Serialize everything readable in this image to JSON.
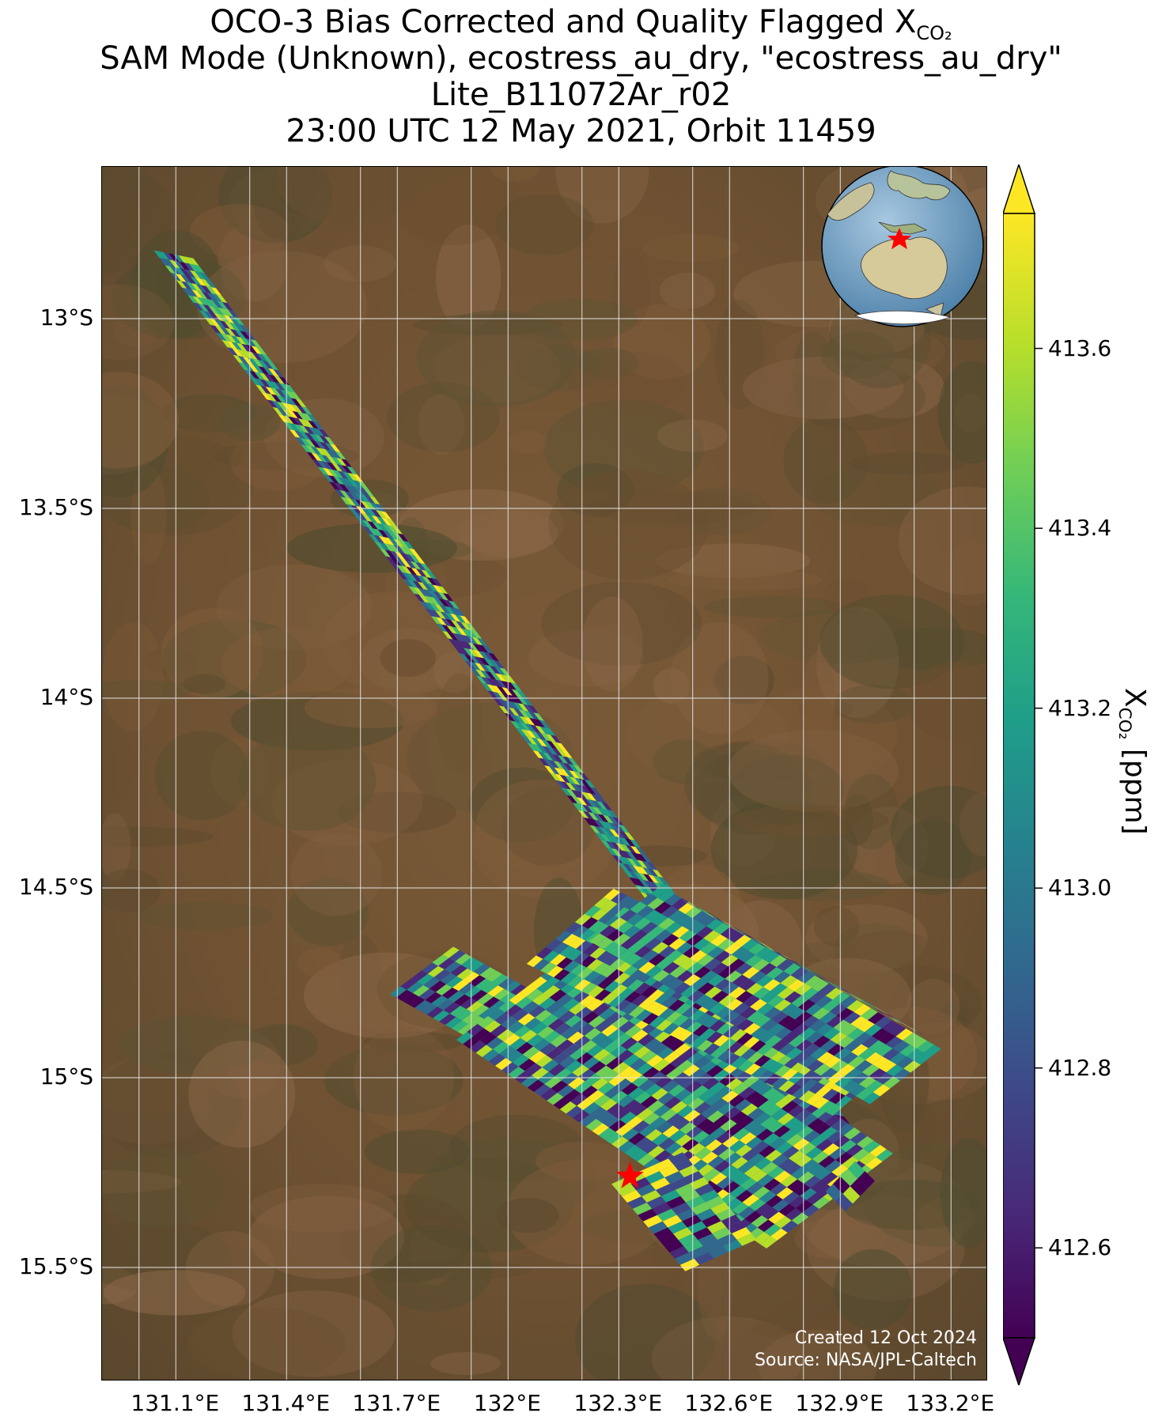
{
  "title": {
    "line1_prefix": "OCO-3 Bias Corrected and Quality Flagged X",
    "line1_sub": "CO₂",
    "line2": "SAM Mode (Unknown), ecostress_au_dry, \"ecostress_au_dry\"",
    "line3": "Lite_B11072Ar_r02",
    "line4": "23:00 UTC 12 May 2021, Orbit 11459"
  },
  "map": {
    "lat_ticks": [
      "13°S",
      "13.5°S",
      "14°S",
      "14.5°S",
      "15°S",
      "15.5°S"
    ],
    "lon_ticks": [
      "131.1°E",
      "131.4°E",
      "131.7°E",
      "132°E",
      "132.3°E",
      "132.6°E",
      "132.9°E",
      "133.2°E"
    ],
    "lat_range": [
      -15.8,
      -12.6
    ],
    "lon_range": [
      130.9,
      133.3
    ],
    "target": {
      "lon": 132.33,
      "lat": -15.26,
      "marker": "red-star"
    },
    "background": "satellite-imagery",
    "grid": true,
    "credit_line1": "Created 12 Oct 2024",
    "credit_line2": "Source: NASA/JPL-Caltech",
    "inset": "globe-australia-locator"
  },
  "colorbar": {
    "ticks": [
      "413.6",
      "413.4",
      "413.2",
      "413.0",
      "412.8",
      "412.6"
    ],
    "label_prefix": "X",
    "label_sub": "CO₂",
    "label_suffix": " [ppm]",
    "colormap": "viridis",
    "extend": "both",
    "range": [
      412.5,
      413.75
    ]
  },
  "colors": {
    "viridis": [
      "#440154",
      "#482878",
      "#3e4989",
      "#31688e",
      "#26828e",
      "#1f9e89",
      "#35b779",
      "#6ece58",
      "#b5de2b",
      "#fde725"
    ],
    "target_marker": "#ff0000"
  }
}
